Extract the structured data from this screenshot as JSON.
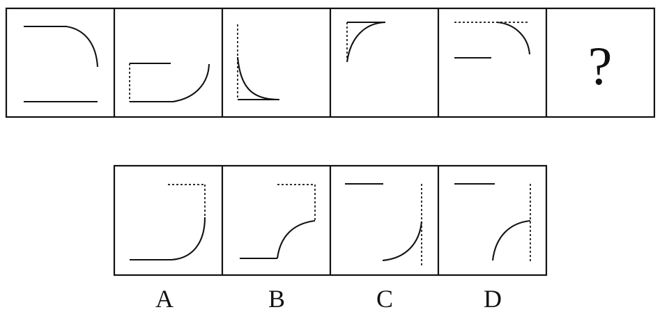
{
  "puzzle": {
    "question_symbol": "?",
    "options": [
      {
        "label": "A"
      },
      {
        "label": "B"
      },
      {
        "label": "C"
      },
      {
        "label": "D"
      }
    ]
  }
}
